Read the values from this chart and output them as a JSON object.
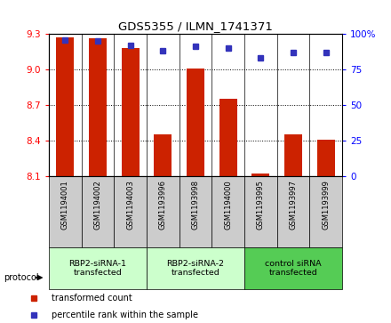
{
  "title": "GDS5355 / ILMN_1741371",
  "samples": [
    "GSM1194001",
    "GSM1194002",
    "GSM1194003",
    "GSM1193996",
    "GSM1193998",
    "GSM1194000",
    "GSM1193995",
    "GSM1193997",
    "GSM1193999"
  ],
  "bar_values": [
    9.27,
    9.26,
    9.18,
    8.45,
    9.01,
    8.75,
    8.12,
    8.45,
    8.41
  ],
  "percentile_values": [
    96,
    95,
    92,
    88,
    91,
    90,
    83,
    87,
    87
  ],
  "bar_color": "#CC2200",
  "dot_color": "#3333BB",
  "ylim_left": [
    8.1,
    9.3
  ],
  "ylim_right": [
    0,
    100
  ],
  "yticks_left": [
    8.1,
    8.4,
    8.7,
    9.0,
    9.3
  ],
  "yticks_right": [
    0,
    25,
    50,
    75,
    100
  ],
  "groups": [
    {
      "label": "RBP2-siRNA-1\ntransfected",
      "start": 0,
      "end": 3,
      "color": "#ccffcc"
    },
    {
      "label": "RBP2-siRNA-2\ntransfected",
      "start": 3,
      "end": 6,
      "color": "#ccffcc"
    },
    {
      "label": "control siRNA\ntransfected",
      "start": 6,
      "end": 9,
      "color": "#55cc55"
    }
  ],
  "protocol_label": "protocol",
  "legend_items": [
    {
      "color": "#CC2200",
      "label": "transformed count"
    },
    {
      "color": "#3333BB",
      "label": "percentile rank within the sample"
    }
  ],
  "background_color": "#ffffff",
  "sample_area_color": "#cccccc"
}
